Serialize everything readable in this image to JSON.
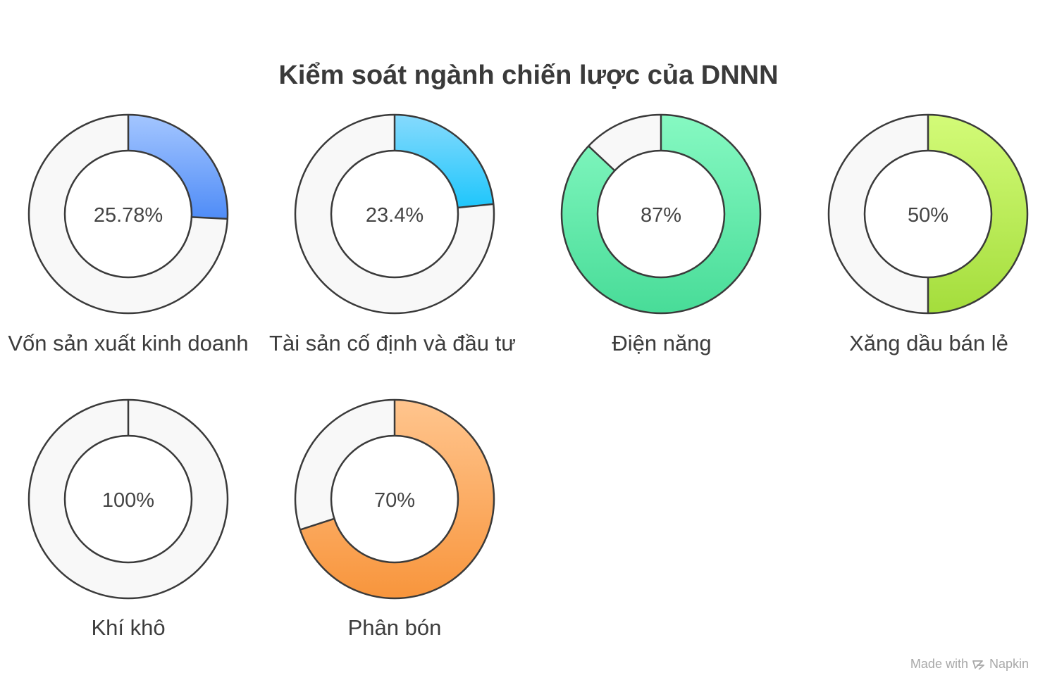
{
  "chart_data": {
    "type": "pie",
    "variant": "donut",
    "title": "Kiểm soát ngành chiến lược của DNNN",
    "items": [
      {
        "category": "Vốn sản xuất kinh doanh",
        "value": 25.78,
        "label": "25.78%",
        "color_start": "#a4c6ff",
        "color_end": "#4f8cf7"
      },
      {
        "category": "Tài sản cố định và đầu tư",
        "value": 23.4,
        "label": "23.4%",
        "color_start": "#86dafd",
        "color_end": "#1fc6fb"
      },
      {
        "category": "Điện năng",
        "value": 87,
        "label": "87%",
        "color_start": "#86f9c2",
        "color_end": "#48dc98"
      },
      {
        "category": "Xăng dầu bán lẻ",
        "value": 50,
        "label": "50%",
        "color_start": "#d3fb78",
        "color_end": "#a4dd3c"
      },
      {
        "category": "Khí khô",
        "value": 100,
        "label": "100%",
        "color_start": "#f8f8f8",
        "color_end": "#f8f8f8"
      },
      {
        "category": "Phân bón",
        "value": 70,
        "label": "70%",
        "color_start": "#ffc58e",
        "color_end": "#f8953c"
      }
    ],
    "remainder_color": "#f8f8f8",
    "outline_color": "#3a3a3a"
  },
  "watermark": {
    "prefix": "Made with",
    "brand": "Napkin",
    "icon": "napkin-logo-icon"
  }
}
